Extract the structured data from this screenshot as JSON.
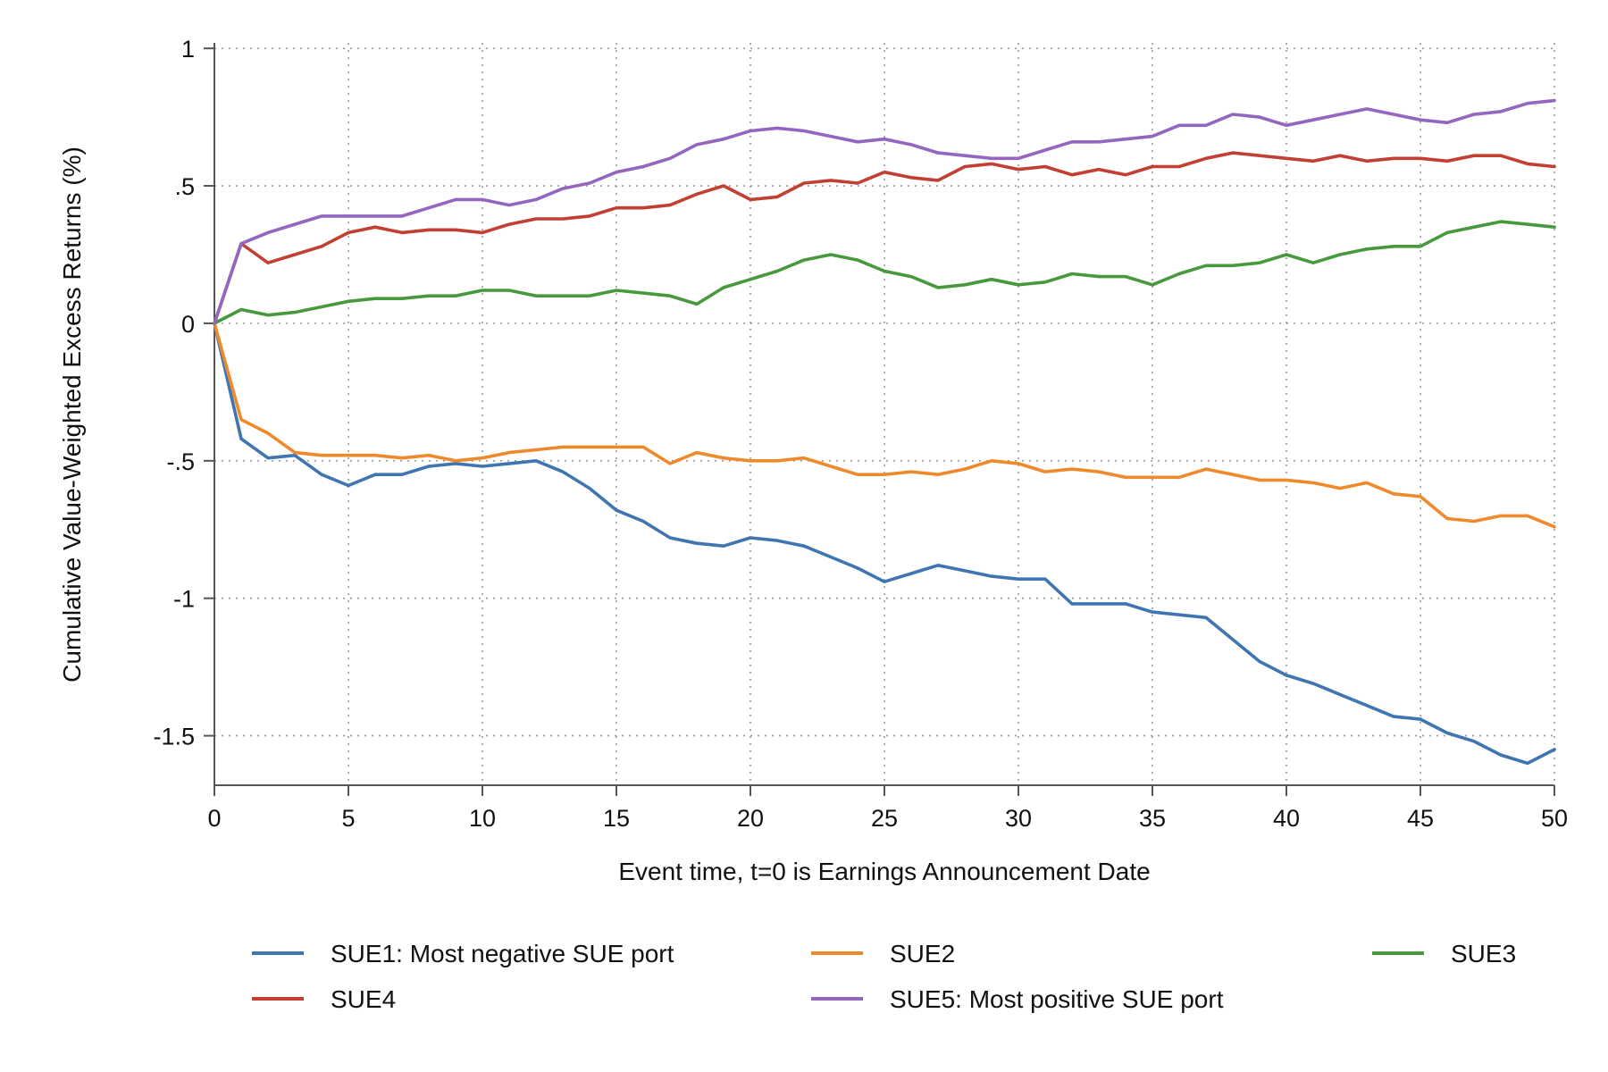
{
  "chart_data": {
    "type": "line",
    "title": "",
    "xlabel": "Event time, t=0 is Earnings Announcement Date",
    "ylabel": "Cumulative Value-Weighted Excess Returns (%)",
    "xlim": [
      0,
      50
    ],
    "ylim": [
      -1.68,
      1.02
    ],
    "xticks": [
      0,
      5,
      10,
      15,
      20,
      25,
      30,
      35,
      40,
      45,
      50
    ],
    "xtick_labels": [
      "0",
      "5",
      "10",
      "15",
      "20",
      "25",
      "30",
      "35",
      "40",
      "45",
      "50"
    ],
    "yticks": [
      1,
      0.5,
      0,
      -0.5,
      -1,
      -1.5
    ],
    "ytick_labels": [
      "1",
      ".5",
      "0",
      "-.5",
      "-1",
      "-1.5"
    ],
    "grid": true,
    "legend_position": "bottom",
    "x": [
      0,
      1,
      2,
      3,
      4,
      5,
      6,
      7,
      8,
      9,
      10,
      11,
      12,
      13,
      14,
      15,
      16,
      17,
      18,
      19,
      20,
      21,
      22,
      23,
      24,
      25,
      26,
      27,
      28,
      29,
      30,
      31,
      32,
      33,
      34,
      35,
      36,
      37,
      38,
      39,
      40,
      41,
      42,
      43,
      44,
      45,
      46,
      47,
      48,
      49,
      50
    ],
    "series": [
      {
        "name": "SUE1: Most negative SUE port",
        "color": "#3f75b0",
        "values": [
          0,
          -0.42,
          -0.49,
          -0.48,
          -0.55,
          -0.59,
          -0.55,
          -0.55,
          -0.52,
          -0.51,
          -0.52,
          -0.51,
          -0.5,
          -0.54,
          -0.6,
          -0.68,
          -0.72,
          -0.78,
          -0.8,
          -0.81,
          -0.78,
          -0.79,
          -0.81,
          -0.85,
          -0.89,
          -0.94,
          -0.91,
          -0.88,
          -0.9,
          -0.92,
          -0.93,
          -0.93,
          -1.02,
          -1.02,
          -1.02,
          -1.05,
          -1.06,
          -1.07,
          -1.15,
          -1.23,
          -1.28,
          -1.31,
          -1.35,
          -1.39,
          -1.43,
          -1.44,
          -1.49,
          -1.52,
          -1.57,
          -1.6,
          -1.55
        ]
      },
      {
        "name": "SUE2",
        "color": "#ef8a2c",
        "values": [
          0,
          -0.35,
          -0.4,
          -0.47,
          -0.48,
          -0.48,
          -0.48,
          -0.49,
          -0.48,
          -0.5,
          -0.49,
          -0.47,
          -0.46,
          -0.45,
          -0.45,
          -0.45,
          -0.45,
          -0.51,
          -0.47,
          -0.49,
          -0.5,
          -0.5,
          -0.49,
          -0.52,
          -0.55,
          -0.55,
          -0.54,
          -0.55,
          -0.53,
          -0.5,
          -0.51,
          -0.54,
          -0.53,
          -0.54,
          -0.56,
          -0.56,
          -0.56,
          -0.53,
          -0.55,
          -0.57,
          -0.57,
          -0.58,
          -0.6,
          -0.58,
          -0.62,
          -0.63,
          -0.71,
          -0.72,
          -0.7,
          -0.7,
          -0.74
        ]
      },
      {
        "name": "SUE3",
        "color": "#479a3c",
        "values": [
          0,
          0.05,
          0.03,
          0.04,
          0.06,
          0.08,
          0.09,
          0.09,
          0.1,
          0.1,
          0.12,
          0.12,
          0.1,
          0.1,
          0.1,
          0.12,
          0.11,
          0.1,
          0.07,
          0.13,
          0.16,
          0.19,
          0.23,
          0.25,
          0.23,
          0.19,
          0.17,
          0.13,
          0.14,
          0.16,
          0.14,
          0.15,
          0.18,
          0.17,
          0.17,
          0.14,
          0.18,
          0.21,
          0.21,
          0.22,
          0.25,
          0.22,
          0.25,
          0.27,
          0.28,
          0.28,
          0.33,
          0.35,
          0.37,
          0.36,
          0.35
        ]
      },
      {
        "name": "SUE4",
        "color": "#c33f32",
        "values": [
          0,
          0.29,
          0.22,
          0.25,
          0.28,
          0.33,
          0.35,
          0.33,
          0.34,
          0.34,
          0.33,
          0.36,
          0.38,
          0.38,
          0.39,
          0.42,
          0.42,
          0.43,
          0.47,
          0.5,
          0.45,
          0.46,
          0.51,
          0.52,
          0.51,
          0.55,
          0.53,
          0.52,
          0.57,
          0.58,
          0.56,
          0.57,
          0.54,
          0.56,
          0.54,
          0.57,
          0.57,
          0.6,
          0.62,
          0.61,
          0.6,
          0.59,
          0.61,
          0.59,
          0.6,
          0.6,
          0.59,
          0.61,
          0.61,
          0.58,
          0.57
        ]
      },
      {
        "name": "SUE5: Most positive SUE port",
        "color": "#9466c0",
        "values": [
          0,
          0.29,
          0.33,
          0.36,
          0.39,
          0.39,
          0.39,
          0.39,
          0.42,
          0.45,
          0.45,
          0.43,
          0.45,
          0.49,
          0.51,
          0.55,
          0.57,
          0.6,
          0.65,
          0.67,
          0.7,
          0.71,
          0.7,
          0.68,
          0.66,
          0.67,
          0.65,
          0.62,
          0.61,
          0.6,
          0.6,
          0.63,
          0.66,
          0.66,
          0.67,
          0.68,
          0.72,
          0.72,
          0.76,
          0.75,
          0.72,
          0.74,
          0.76,
          0.78,
          0.76,
          0.74,
          0.73,
          0.76,
          0.77,
          0.8,
          0.81
        ]
      }
    ]
  }
}
